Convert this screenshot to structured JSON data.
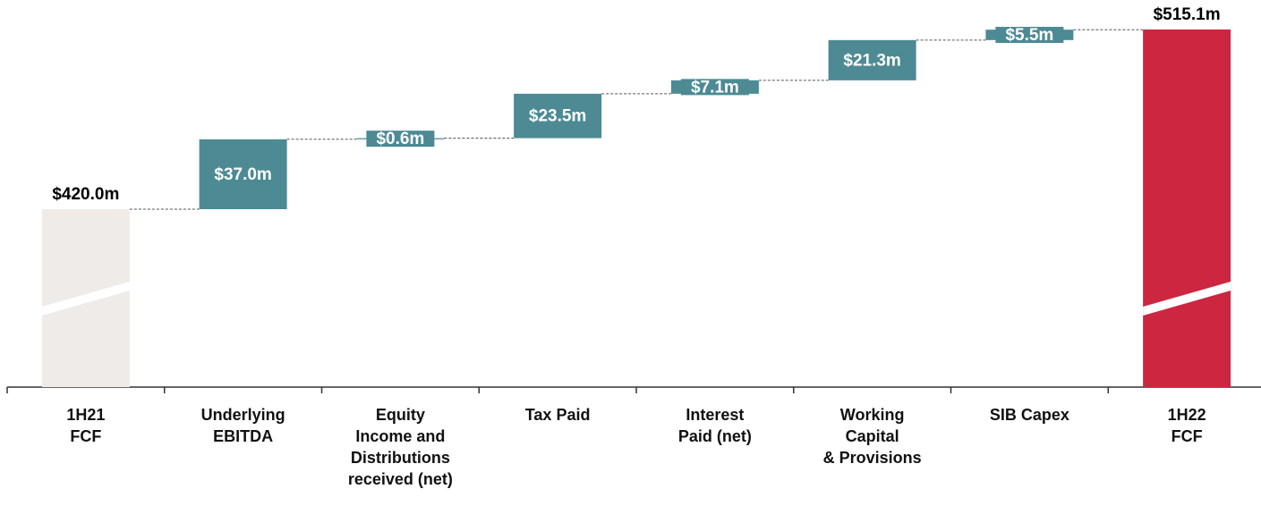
{
  "chart_data": {
    "type": "waterfall",
    "categories": [
      "1H21\nFCF",
      "Underlying\nEBITDA",
      "Equity\nIncome and\nDistributions\nreceived (net)",
      "Tax Paid",
      "Interest\nPaid (net)",
      "Working\nCapital\n& Provisions",
      "SIB Capex",
      "1H22\nFCF"
    ],
    "values": [
      420.0,
      37.0,
      0.6,
      23.5,
      7.1,
      21.3,
      5.5,
      515.1
    ],
    "value_labels": [
      "$420.0m",
      "$37.0m",
      "$0.6m",
      "$23.5m",
      "$7.1m",
      "$21.3m",
      "$5.5m",
      "$515.1m"
    ],
    "colors": [
      "#efebe8",
      "#4d8a94",
      "#4d8a94",
      "#4d8a94",
      "#4d8a94",
      "#4d8a94",
      "#4d8a94",
      "#cc2640"
    ]
  }
}
